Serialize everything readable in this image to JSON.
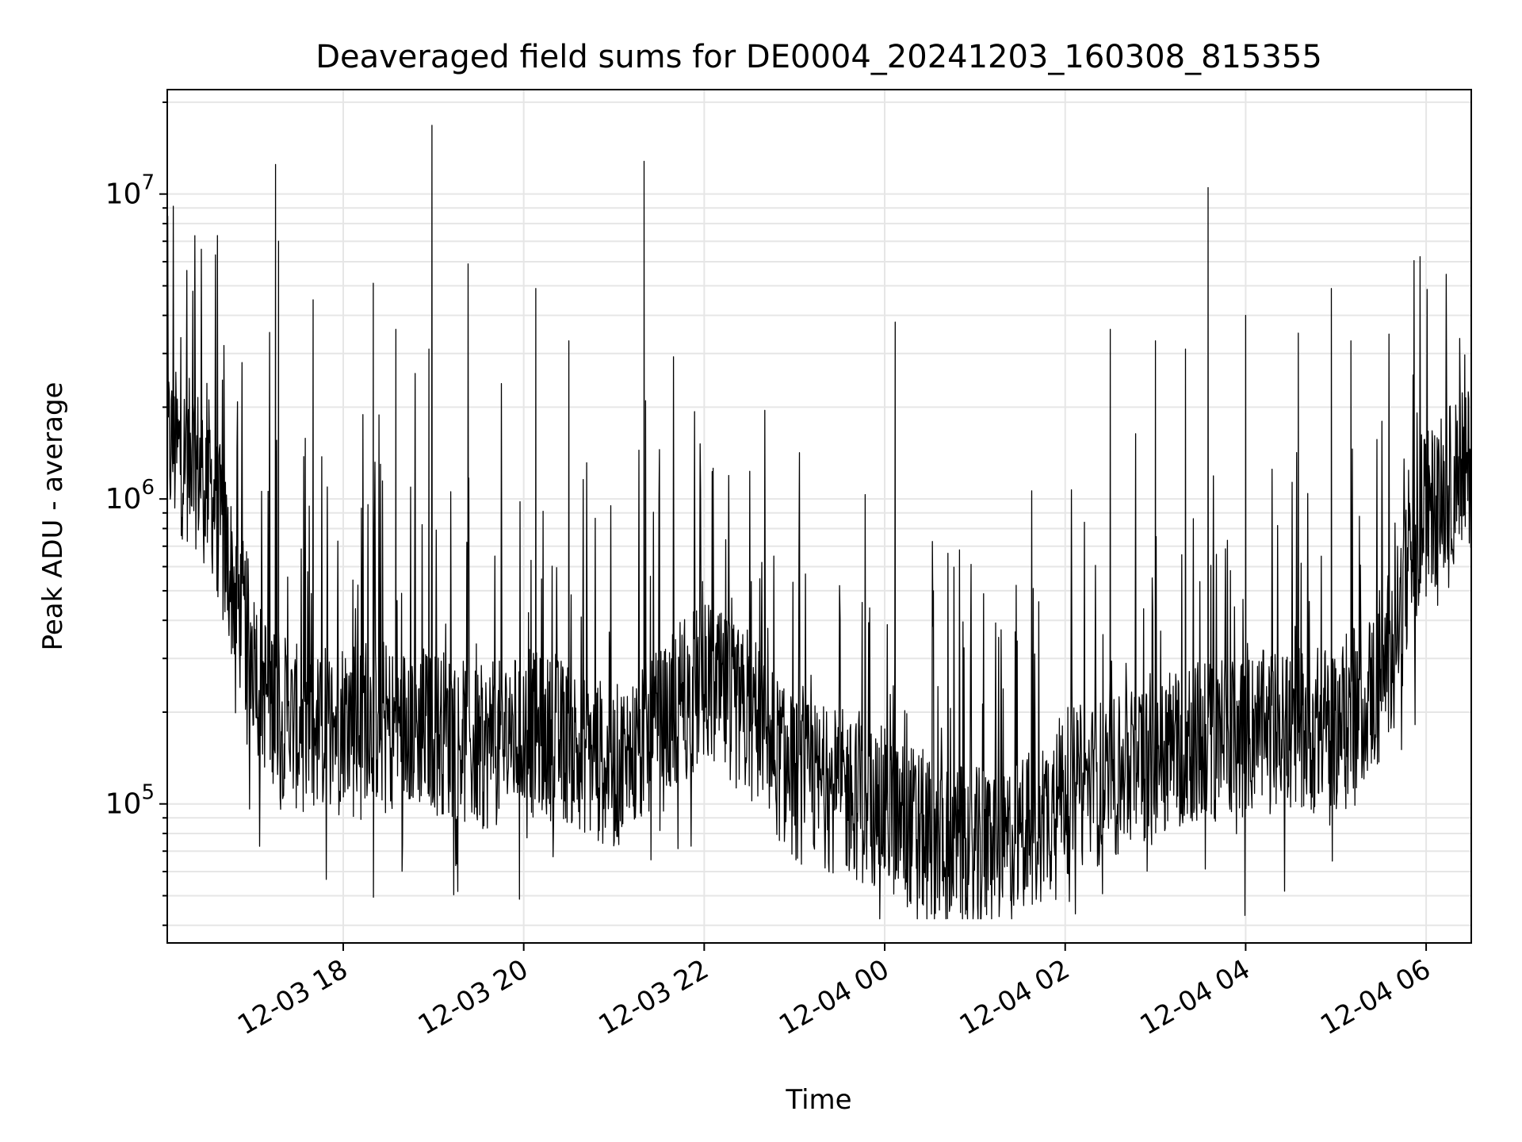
{
  "chart_data": {
    "type": "line",
    "title": "Deaveraged field sums for DE0004_20241203_160308_815355",
    "xlabel": "Time",
    "ylabel": "Peak ADU - average",
    "yscale": "log",
    "ylim": [
      35000,
      22000000
    ],
    "xlim": [
      "2024-12-03 16:03",
      "2024-12-04 06:30"
    ],
    "grid": true,
    "line_color": "#000000",
    "grid_color": "#e6e6e6",
    "x_ticks": [
      "12-03 18",
      "12-03 20",
      "12-03 22",
      "12-04 00",
      "12-04 02",
      "12-04 04",
      "12-04 06"
    ],
    "y_ticks": [
      {
        "base": "10",
        "exp": "5",
        "value": 100000
      },
      {
        "base": "10",
        "exp": "6",
        "value": 1000000
      },
      {
        "base": "10",
        "exp": "7",
        "value": 10000000
      }
    ],
    "x": [
      "2024-12-03 16:03",
      "2024-12-03 16:30",
      "2024-12-03 16:50",
      "2024-12-03 17:05",
      "2024-12-03 17:25",
      "2024-12-03 17:45",
      "2024-12-03 18:05",
      "2024-12-03 18:30",
      "2024-12-03 19:00",
      "2024-12-03 19:30",
      "2024-12-03 20:00",
      "2024-12-03 20:30",
      "2024-12-03 21:00",
      "2024-12-03 21:30",
      "2024-12-03 22:00",
      "2024-12-03 22:30",
      "2024-12-03 23:00",
      "2024-12-03 23:30",
      "2024-12-04 00:00",
      "2024-12-04 00:30",
      "2024-12-04 01:00",
      "2024-12-04 01:30",
      "2024-12-04 02:00",
      "2024-12-04 02:30",
      "2024-12-04 03:00",
      "2024-12-04 03:30",
      "2024-12-04 04:00",
      "2024-12-04 04:30",
      "2024-12-04 05:00",
      "2024-12-04 05:30",
      "2024-12-04 06:00",
      "2024-12-04 06:30"
    ],
    "series": [
      {
        "values": [
          1500000,
          1200000,
          450000,
          250000,
          180000,
          170000,
          200000,
          180000,
          180000,
          150000,
          170000,
          160000,
          130000,
          170000,
          250000,
          190000,
          120000,
          110000,
          95000,
          78000,
          70000,
          75000,
          110000,
          120000,
          150000,
          160000,
          170000,
          170000,
          180000,
          250000,
          900000,
          1300000
        ]
      }
    ],
    "spikes": [
      {
        "x": "2024-12-03 16:20",
        "y": 4800000
      },
      {
        "x": "2024-12-03 17:15",
        "y": 12500000
      },
      {
        "x": "2024-12-03 17:17",
        "y": 7000000
      },
      {
        "x": "2024-12-03 17:40",
        "y": 4500000
      },
      {
        "x": "2024-12-03 18:20",
        "y": 5100000
      },
      {
        "x": "2024-12-03 18:35",
        "y": 3600000
      },
      {
        "x": "2024-12-03 18:57",
        "y": 3100000
      },
      {
        "x": "2024-12-03 18:59",
        "y": 16800000
      },
      {
        "x": "2024-12-03 19:23",
        "y": 5900000
      },
      {
        "x": "2024-12-03 20:08",
        "y": 4900000
      },
      {
        "x": "2024-12-03 20:30",
        "y": 3300000
      },
      {
        "x": "2024-12-03 21:20",
        "y": 12800000
      },
      {
        "x": "2024-12-03 21:21",
        "y": 2100000
      },
      {
        "x": "2024-12-04 00:07",
        "y": 3800000
      },
      {
        "x": "2024-12-04 02:30",
        "y": 3600000
      },
      {
        "x": "2024-12-04 03:00",
        "y": 3300000
      },
      {
        "x": "2024-12-04 03:20",
        "y": 3100000
      },
      {
        "x": "2024-12-04 03:35",
        "y": 10500000
      },
      {
        "x": "2024-12-04 04:00",
        "y": 4000000
      },
      {
        "x": "2024-12-04 04:35",
        "y": 3500000
      },
      {
        "x": "2024-12-04 04:57",
        "y": 4900000
      },
      {
        "x": "2024-12-04 05:10",
        "y": 3300000
      }
    ]
  }
}
